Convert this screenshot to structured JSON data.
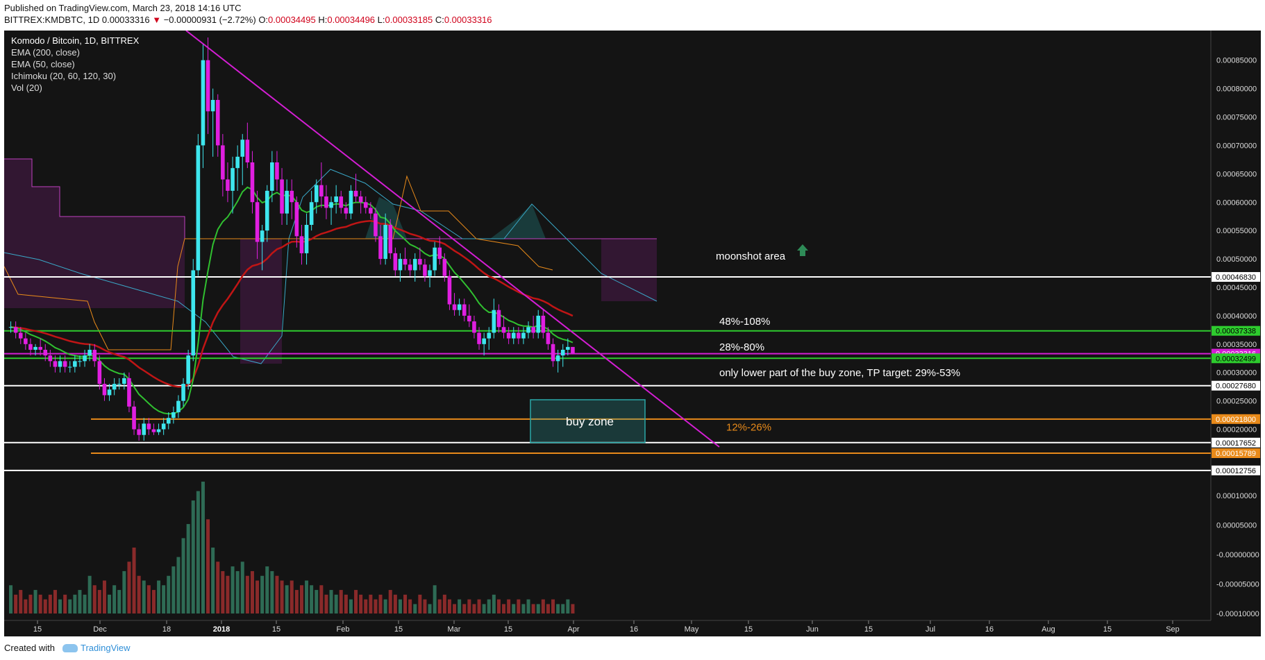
{
  "header": {
    "published": "Published on TradingView.com, March 23, 2018 14:16 UTC",
    "symbol": "BITTREX:KMDBTC, 1D",
    "last": "0.00033316",
    "arrow": "▼",
    "change": "−0.00000931 (−2.72%)",
    "o_label": "O:",
    "o_value": "0.00034495",
    "h_label": "H:",
    "h_value": "0.00034496",
    "l_label": "L:",
    "l_value": "0.00033185",
    "c_label": "C:",
    "c_value": "0.00033316"
  },
  "legend": {
    "title": "Komodo / Bitcoin, 1D, BITTREX",
    "items": [
      "EMA (200, close)",
      "EMA (50, close)",
      "Ichimoku (20, 60, 120, 30)",
      "Vol (20)"
    ]
  },
  "footer": {
    "created_with": "Created with",
    "brand": "TradingView"
  },
  "colors": {
    "background": "#141414",
    "up_candle": "#3ee6ee",
    "down_candle": "#e01fe0",
    "ema200": "#c01515",
    "ema50": "#30c030",
    "trendline": "#d41ed4",
    "green_level": "#2ecc2e",
    "orange_level": "#e88a1a",
    "white_level": "#ffffff",
    "buy_zone": "#2aa8a8",
    "vol_up": "#2e6b55",
    "vol_down": "#8a2a2a"
  },
  "chart_data": {
    "type": "candlestick",
    "x_ticks": [
      "15",
      "Dec",
      "18",
      "2018",
      "15",
      "Feb",
      "15",
      "Mar",
      "15",
      "Apr",
      "16",
      "May",
      "15",
      "Jun",
      "15",
      "Jul",
      "16",
      "Aug",
      "15",
      "Sep"
    ],
    "price_ticks": [
      "0.00085000",
      "0.00080000",
      "0.00075000",
      "0.00070000",
      "0.00065000",
      "0.00060000",
      "0.00055000",
      "0.00050000",
      "0.00045000",
      "0.00040000",
      "0.00035000",
      "0.00030000",
      "0.00025000",
      "0.00020000"
    ],
    "volume_ticks": [
      "0.00010000",
      "0.00005000",
      "-0.00000000",
      "-0.00005000",
      "-0.00010000"
    ],
    "ylim": [
      0.00012,
      0.00089
    ],
    "candles": [
      [
        0.00038,
        0.00039,
        0.00037,
        0.00038
      ],
      [
        0.00038,
        0.00039,
        0.00036,
        0.00037
      ],
      [
        0.00037,
        0.00038,
        0.00035,
        0.00036
      ],
      [
        0.00036,
        0.00037,
        0.00034,
        0.00035
      ],
      [
        0.00035,
        0.00036,
        0.00033,
        0.00034
      ],
      [
        0.00034,
        0.00035,
        0.00033,
        0.000345
      ],
      [
        0.000345,
        0.00036,
        0.00033,
        0.00034
      ],
      [
        0.00034,
        0.00035,
        0.00032,
        0.00033
      ],
      [
        0.00033,
        0.00034,
        0.00031,
        0.00032
      ],
      [
        0.00032,
        0.00033,
        0.0003,
        0.00031
      ],
      [
        0.00031,
        0.00033,
        0.0003,
        0.00032
      ],
      [
        0.00032,
        0.00033,
        0.0003,
        0.00031
      ],
      [
        0.00031,
        0.00032,
        0.0003,
        0.00031
      ],
      [
        0.00031,
        0.00033,
        0.0003,
        0.00032
      ],
      [
        0.00032,
        0.00033,
        0.00031,
        0.00032
      ],
      [
        0.00032,
        0.00034,
        0.00031,
        0.00033
      ],
      [
        0.00033,
        0.00035,
        0.00032,
        0.00034
      ],
      [
        0.00034,
        0.00035,
        0.00031,
        0.00032
      ],
      [
        0.00032,
        0.00033,
        0.00027,
        0.00028
      ],
      [
        0.00028,
        0.00029,
        0.00025,
        0.00026
      ],
      [
        0.00026,
        0.00028,
        0.00025,
        0.00027
      ],
      [
        0.00027,
        0.00029,
        0.00026,
        0.00028
      ],
      [
        0.00028,
        0.00029,
        0.00027,
        0.00028
      ],
      [
        0.00028,
        0.0003,
        0.00027,
        0.00029
      ],
      [
        0.00029,
        0.0003,
        0.00023,
        0.00024
      ],
      [
        0.00024,
        0.00025,
        0.00019,
        0.0002
      ],
      [
        0.0002,
        0.00021,
        0.00018,
        0.00019
      ],
      [
        0.00019,
        0.00022,
        0.00018,
        0.00021
      ],
      [
        0.00021,
        0.00022,
        0.00019,
        0.0002
      ],
      [
        0.0002,
        0.00021,
        0.00019,
        0.000195
      ],
      [
        0.000195,
        0.00021,
        0.00019,
        0.0002
      ],
      [
        0.0002,
        0.00022,
        0.00019,
        0.00021
      ],
      [
        0.00021,
        0.00023,
        0.0002,
        0.00022
      ],
      [
        0.00022,
        0.00024,
        0.00021,
        0.00023
      ],
      [
        0.00023,
        0.00026,
        0.00022,
        0.00025
      ],
      [
        0.00025,
        0.00029,
        0.00024,
        0.00028
      ],
      [
        0.00028,
        0.00034,
        0.00027,
        0.00033
      ],
      [
        0.00033,
        0.0005,
        0.00032,
        0.00048
      ],
      [
        0.00048,
        0.00072,
        0.00047,
        0.0007
      ],
      [
        0.0007,
        0.00088,
        0.00066,
        0.00085
      ],
      [
        0.00085,
        0.00089,
        0.00072,
        0.00076
      ],
      [
        0.00076,
        0.0008,
        0.00068,
        0.00078
      ],
      [
        0.00078,
        0.00079,
        0.00068,
        0.0007
      ],
      [
        0.0007,
        0.00072,
        0.00061,
        0.00064
      ],
      [
        0.00064,
        0.00067,
        0.0006,
        0.00062
      ],
      [
        0.00062,
        0.00068,
        0.00058,
        0.00066
      ],
      [
        0.00066,
        0.0007,
        0.00062,
        0.00068
      ],
      [
        0.00068,
        0.00072,
        0.00063,
        0.00071
      ],
      [
        0.00071,
        0.00074,
        0.00066,
        0.00067
      ],
      [
        0.00067,
        0.00069,
        0.00058,
        0.0006
      ],
      [
        0.0006,
        0.00062,
        0.0005,
        0.00053
      ],
      [
        0.00053,
        0.00056,
        0.00048,
        0.00055
      ],
      [
        0.00055,
        0.00063,
        0.00053,
        0.00062
      ],
      [
        0.00062,
        0.00069,
        0.0006,
        0.00067
      ],
      [
        0.00067,
        0.00069,
        0.00062,
        0.00064
      ],
      [
        0.00064,
        0.00066,
        0.00056,
        0.00058
      ],
      [
        0.00058,
        0.00064,
        0.00056,
        0.00062
      ],
      [
        0.00062,
        0.00064,
        0.00057,
        0.0006
      ],
      [
        0.0006,
        0.00061,
        0.00052,
        0.00054
      ],
      [
        0.00054,
        0.00056,
        0.00049,
        0.00051
      ],
      [
        0.00051,
        0.00058,
        0.00049,
        0.00056
      ],
      [
        0.00056,
        0.00062,
        0.00055,
        0.0006
      ],
      [
        0.0006,
        0.00064,
        0.00058,
        0.00063
      ],
      [
        0.00063,
        0.00067,
        0.00059,
        0.00061
      ],
      [
        0.00061,
        0.00063,
        0.00057,
        0.00059
      ],
      [
        0.00059,
        0.00061,
        0.00056,
        0.0006
      ],
      [
        0.0006,
        0.00063,
        0.00058,
        0.00061
      ],
      [
        0.00061,
        0.00062,
        0.00058,
        0.00059
      ],
      [
        0.00059,
        0.0006,
        0.00057,
        0.00058
      ],
      [
        0.00058,
        0.00063,
        0.00057,
        0.00062
      ],
      [
        0.00062,
        0.00065,
        0.0006,
        0.00061
      ],
      [
        0.00061,
        0.00062,
        0.00058,
        0.0006
      ],
      [
        0.0006,
        0.00061,
        0.00058,
        0.00059
      ],
      [
        0.00059,
        0.0006,
        0.00057,
        0.00058
      ],
      [
        0.00058,
        0.00059,
        0.00053,
        0.00054
      ],
      [
        0.00054,
        0.00056,
        0.00049,
        0.0005
      ],
      [
        0.0005,
        0.00058,
        0.00049,
        0.00056
      ],
      [
        0.00056,
        0.00057,
        0.0005,
        0.00051
      ],
      [
        0.00051,
        0.00052,
        0.00047,
        0.00048
      ],
      [
        0.00048,
        0.00051,
        0.00046,
        0.0005
      ],
      [
        0.0005,
        0.00052,
        0.00048,
        0.00049
      ],
      [
        0.00049,
        0.0005,
        0.00047,
        0.00048
      ],
      [
        0.00048,
        0.00051,
        0.00046,
        0.0005
      ],
      [
        0.0005,
        0.00052,
        0.00048,
        0.00049
      ],
      [
        0.00049,
        0.0005,
        0.00046,
        0.00047
      ],
      [
        0.00047,
        0.00049,
        0.00045,
        0.00048
      ],
      [
        0.00048,
        0.00053,
        0.00047,
        0.00052
      ],
      [
        0.00052,
        0.00054,
        0.00049,
        0.0005
      ],
      [
        0.0005,
        0.00051,
        0.00046,
        0.00047
      ],
      [
        0.00047,
        0.00048,
        0.00041,
        0.00042
      ],
      [
        0.00042,
        0.00044,
        0.0004,
        0.00041
      ],
      [
        0.00041,
        0.00043,
        0.0004,
        0.00042
      ],
      [
        0.00042,
        0.00043,
        0.00039,
        0.0004
      ],
      [
        0.0004,
        0.00042,
        0.00038,
        0.00039
      ],
      [
        0.00039,
        0.0004,
        0.00036,
        0.00037
      ],
      [
        0.00037,
        0.00038,
        0.00034,
        0.00035
      ],
      [
        0.00035,
        0.00037,
        0.00033,
        0.00036
      ],
      [
        0.00036,
        0.00038,
        0.00034,
        0.00037
      ],
      [
        0.00037,
        0.00043,
        0.00036,
        0.00041
      ],
      [
        0.00041,
        0.00042,
        0.00037,
        0.00038
      ],
      [
        0.00038,
        0.0004,
        0.00036,
        0.00037
      ],
      [
        0.00037,
        0.00038,
        0.00035,
        0.00036
      ],
      [
        0.00036,
        0.00038,
        0.00035,
        0.00037
      ],
      [
        0.00037,
        0.00038,
        0.00035,
        0.00036
      ],
      [
        0.00036,
        0.00038,
        0.00035,
        0.00037
      ],
      [
        0.00037,
        0.00039,
        0.00036,
        0.00038
      ],
      [
        0.00038,
        0.0004,
        0.00036,
        0.00037
      ],
      [
        0.00037,
        0.00041,
        0.00036,
        0.0004
      ],
      [
        0.0004,
        0.00041,
        0.00036,
        0.00037
      ],
      [
        0.00037,
        0.00038,
        0.00034,
        0.00035
      ],
      [
        0.00035,
        0.00036,
        0.00031,
        0.00032
      ],
      [
        0.00032,
        0.00034,
        0.0003,
        0.00033
      ],
      [
        0.00033,
        0.00035,
        0.00031,
        0.00034
      ],
      [
        0.00034,
        0.00036,
        0.00033,
        0.000345
      ],
      [
        0.000345,
        0.000345,
        0.000332,
        0.000333
      ]
    ],
    "volume": [
      6,
      4,
      5,
      3,
      4,
      5,
      4,
      3,
      4,
      5,
      3,
      4,
      3,
      4,
      5,
      4,
      8,
      6,
      5,
      7,
      4,
      6,
      5,
      9,
      11,
      14,
      8,
      7,
      6,
      5,
      7,
      6,
      8,
      10,
      12,
      16,
      19,
      24,
      26,
      28,
      20,
      14,
      11,
      9,
      8,
      10,
      9,
      11,
      8,
      9,
      7,
      8,
      10,
      9,
      8,
      7,
      6,
      7,
      5,
      6,
      7,
      6,
      5,
      6,
      4,
      5,
      4,
      5,
      4,
      3,
      5,
      4,
      3,
      4,
      3,
      4,
      3,
      5,
      4,
      3,
      4,
      3,
      2,
      4,
      3,
      2,
      6,
      3,
      4,
      3,
      2,
      3,
      2,
      3,
      2,
      3,
      2,
      3,
      4,
      3,
      2,
      3,
      2,
      3,
      2,
      3,
      2,
      2,
      3,
      2,
      3,
      2,
      2,
      3,
      2
    ],
    "horizontal_levels": [
      {
        "price": 0.0004683,
        "label": "0.00046830",
        "color": "#ffffff",
        "text_color": "#000000"
      },
      {
        "price": 0.00037338,
        "label": "0.00037338",
        "color": "#2ecc2e",
        "text_color": "#000000"
      },
      {
        "price": 0.00033316,
        "label": "0.00033316",
        "color": "#d41ed4",
        "text_color": "#ffffff"
      },
      {
        "price": 0.00032499,
        "label": "0.00032499",
        "color": "#2ecc2e",
        "text_color": "#000000"
      },
      {
        "price": 0.0002768,
        "label": "0.00027680",
        "color": "#ffffff",
        "text_color": "#000000"
      },
      {
        "price": 0.000218,
        "label": "0.00021800",
        "color": "#e88a1a",
        "text_color": "#ffffff"
      },
      {
        "price": 0.00017652,
        "label": "0.00017652",
        "color": "#ffffff",
        "text_color": "#000000"
      },
      {
        "price": 0.00015789,
        "label": "0.00015789",
        "color": "#e88a1a",
        "text_color": "#ffffff"
      },
      {
        "price": 0.00012756,
        "label": "0.00012756",
        "color": "#ffffff",
        "text_color": "#000000"
      }
    ],
    "annotations": {
      "moonshot": "moonshot area",
      "range1": "48%-108%",
      "range2": "28%-80%",
      "buy_note": "only lower part of the buy zone, TP target: 29%-53%",
      "buy_zone": "buy zone",
      "range3": "12%-26%"
    }
  }
}
